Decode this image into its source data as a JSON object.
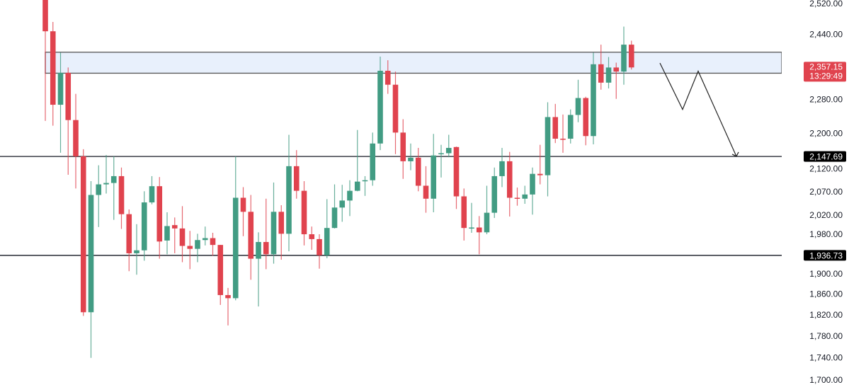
{
  "chart_data": {
    "type": "candlestick",
    "y_scale": "log",
    "ylim": [
      1690,
      2530
    ],
    "grid": false,
    "y_ticks": [
      "2,520.00",
      "2,440.00",
      "2,280.00",
      "2,200.00",
      "2,120.00",
      "2,070.00",
      "2,020.00",
      "1,980.00",
      "1,900.00",
      "1,860.00",
      "1,820.00",
      "1,780.00",
      "1,740.00",
      "1,700.00"
    ],
    "y_tick_values": [
      2520,
      2440,
      2280,
      2200,
      2120,
      2070,
      2020,
      1980,
      1900,
      1860,
      1820,
      1780,
      1740,
      1700
    ],
    "colors": {
      "up": "#429c83",
      "down": "#e0434e",
      "zone_fill": "#e8f0fc",
      "zone_border": "#555555",
      "level": "#131722"
    },
    "candles_ohlc": [
      [
        2530,
        2535,
        2229,
        2448
      ],
      [
        2448,
        2472,
        2218,
        2267
      ],
      [
        2267,
        2394,
        2156,
        2344
      ],
      [
        2344,
        2357,
        2107,
        2231
      ],
      [
        2231,
        2293,
        2077,
        2148
      ],
      [
        2148,
        2164,
        1818,
        1825
      ],
      [
        1825,
        2093,
        1740,
        2063
      ],
      [
        2063,
        2128,
        1995,
        2086
      ],
      [
        2086,
        2151,
        2066,
        2089
      ],
      [
        2089,
        2148,
        2010,
        2104
      ],
      [
        2104,
        2123,
        1991,
        2022
      ],
      [
        2022,
        2032,
        1905,
        1941
      ],
      [
        1941,
        2001,
        1898,
        1947
      ],
      [
        1947,
        2071,
        1926,
        2047
      ],
      [
        2047,
        2104,
        2043,
        2082
      ],
      [
        2082,
        2102,
        1930,
        1965
      ],
      [
        1967,
        2026,
        1939,
        1997
      ],
      [
        1999,
        2015,
        1941,
        1992
      ],
      [
        1992,
        2039,
        1923,
        1956
      ],
      [
        1956,
        1987,
        1909,
        1950
      ],
      [
        1950,
        1981,
        1923,
        1968
      ],
      [
        1968,
        1996,
        1957,
        1972
      ],
      [
        1972,
        1983,
        1936,
        1958
      ],
      [
        1958,
        1958,
        1839,
        1858
      ],
      [
        1858,
        1872,
        1800,
        1852
      ],
      [
        1852,
        2148,
        1848,
        2057
      ],
      [
        2057,
        2080,
        1976,
        2027
      ],
      [
        2027,
        2063,
        1888,
        1930
      ],
      [
        1930,
        1984,
        1836,
        1964
      ],
      [
        1964,
        2055,
        1909,
        1939
      ],
      [
        1939,
        2090,
        1920,
        2027
      ],
      [
        2027,
        2041,
        1928,
        1981
      ],
      [
        1981,
        2197,
        1945,
        2126
      ],
      [
        2126,
        2162,
        2055,
        2072
      ],
      [
        2072,
        2093,
        1957,
        1980
      ],
      [
        1980,
        1996,
        1948,
        1970
      ],
      [
        1970,
        1980,
        1910,
        1937
      ],
      [
        1937,
        2054,
        1931,
        1993
      ],
      [
        1993,
        2086,
        1992,
        2036
      ],
      [
        2036,
        2085,
        2006,
        2051
      ],
      [
        2051,
        2095,
        2018,
        2072
      ],
      [
        2072,
        2208,
        2071,
        2092
      ],
      [
        2094,
        2104,
        2061,
        2095
      ],
      [
        2095,
        2202,
        2083,
        2177
      ],
      [
        2177,
        2384,
        2162,
        2349
      ],
      [
        2349,
        2375,
        2293,
        2315
      ],
      [
        2315,
        2347,
        2153,
        2202
      ],
      [
        2202,
        2233,
        2098,
        2137
      ],
      [
        2137,
        2177,
        2117,
        2145
      ],
      [
        2145,
        2167,
        2071,
        2083
      ],
      [
        2083,
        2126,
        2025,
        2055
      ],
      [
        2055,
        2199,
        2026,
        2150
      ],
      [
        2153,
        2174,
        2101,
        2155
      ],
      [
        2155,
        2197,
        2146,
        2167
      ],
      [
        2169,
        2170,
        2033,
        2060
      ],
      [
        2060,
        2077,
        1967,
        1993
      ],
      [
        1993,
        2046,
        1983,
        1994
      ],
      [
        1994,
        2018,
        1939,
        1984
      ],
      [
        1984,
        2083,
        1980,
        2025
      ],
      [
        2025,
        2123,
        2014,
        2104
      ],
      [
        2104,
        2167,
        2080,
        2137
      ],
      [
        2137,
        2158,
        2017,
        2057
      ],
      [
        2057,
        2079,
        2040,
        2055
      ],
      [
        2055,
        2083,
        2044,
        2064
      ],
      [
        2064,
        2123,
        2021,
        2109
      ],
      [
        2109,
        2174,
        2086,
        2106
      ],
      [
        2106,
        2273,
        2060,
        2238
      ],
      [
        2238,
        2269,
        2178,
        2188
      ],
      [
        2188,
        2244,
        2156,
        2187
      ],
      [
        2188,
        2256,
        2177,
        2243
      ],
      [
        2243,
        2327,
        2226,
        2283
      ],
      [
        2283,
        2286,
        2173,
        2194
      ],
      [
        2194,
        2394,
        2175,
        2365
      ],
      [
        2365,
        2414,
        2303,
        2320
      ],
      [
        2320,
        2383,
        2306,
        2357
      ],
      [
        2357,
        2369,
        2281,
        2347
      ],
      [
        2347,
        2460,
        2315,
        2414
      ],
      [
        2414,
        2424,
        2352,
        2357.15
      ]
    ],
    "resistance_zone": {
      "top": 2395,
      "bottom": 2343
    },
    "horizontal_levels": [
      {
        "value": 2147.69,
        "label": "2,147.69"
      },
      {
        "value": 1936.73,
        "label": "1,936.73"
      }
    ],
    "projection_path_prices": [
      2368,
      2256,
      2348,
      2148
    ],
    "current_price": {
      "value": 2357.15,
      "label": "2,357.15",
      "countdown": "13:29:49"
    }
  }
}
